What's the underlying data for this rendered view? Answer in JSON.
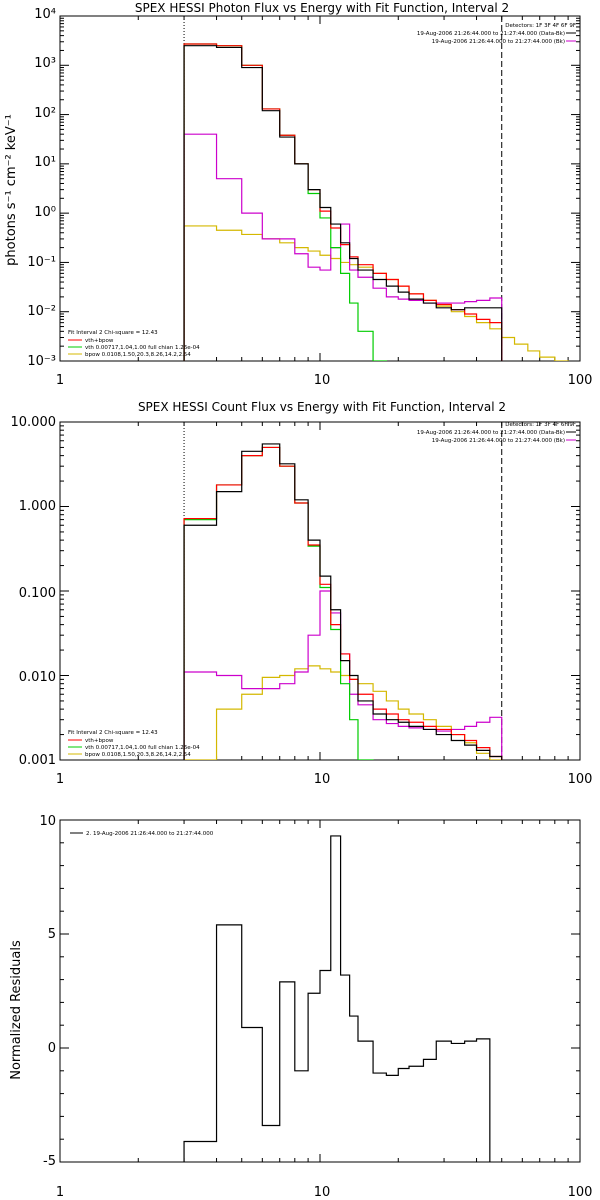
{
  "colors": {
    "data": "#000000",
    "total": "#ff0000",
    "thermal": "#00cc00",
    "nonthermal": "#d4b800",
    "background": "#cc00cc"
  },
  "chart_data": [
    {
      "type": "line",
      "title": "SPEX HESSI Photon Flux vs Energy with Fit Function, Interval 2",
      "xlabel": "",
      "ylabel": "photons s⁻¹ cm⁻² keV⁻¹",
      "xscale": "log",
      "yscale": "log",
      "xlim": [
        1,
        100
      ],
      "ylim": [
        0.001,
        10000
      ],
      "x_ticks": [
        "1",
        "10",
        "100"
      ],
      "y_ticks": [
        "10⁻³",
        "10⁻²",
        "10⁻¹",
        "10⁰",
        "10¹",
        "10²",
        "10³",
        "10⁴"
      ],
      "energy_range_lines": [
        3,
        50
      ],
      "bin_edges": [
        3,
        4,
        5,
        6,
        7,
        8,
        9,
        10,
        11,
        12,
        13,
        14,
        16,
        18,
        20,
        22,
        25,
        28,
        32,
        36,
        40,
        45,
        50,
        56,
        63,
        70,
        80,
        90
      ],
      "legend_top_right": [
        "Detectors: 1F 3F 4F 6F 9F",
        "19-Aug-2006 21:26:44.000 to 21:27:44.000 (Data-Bk)",
        "19-Aug-2006 21:26:44.000 to 21:27:44.000 (Bk)"
      ],
      "legend_bottom_left": [
        "Fit Interval 2   Chi-square = 12.43",
        "vth+bpow",
        "vth 0.00717,1.04,1.00  full chian 1.26e-04",
        "bpow 0.0108,1.50,20.3,8.26,14.2,2.54"
      ],
      "series": [
        {
          "name": "Data-Bk",
          "values": [
            2500,
            2300,
            900,
            120,
            35,
            10,
            3,
            1.3,
            0.6,
            0.25,
            0.12,
            0.07,
            0.045,
            0.033,
            0.025,
            0.018,
            0.015,
            0.012,
            0.011,
            0.012,
            0.012,
            0.012
          ]
        },
        {
          "name": "vth+bpow",
          "values": [
            2700,
            2500,
            1000,
            130,
            38,
            10,
            3,
            1.1,
            0.5,
            0.23,
            0.13,
            0.09,
            0.06,
            0.045,
            0.033,
            0.023,
            0.017,
            0.014,
            0.011,
            0.009,
            0.007,
            0.006
          ]
        },
        {
          "name": "vth",
          "values": [
            2700,
            2500,
            1000,
            130,
            38,
            10,
            2.5,
            0.8,
            0.2,
            0.06,
            0.015,
            0.004,
            0.001
          ]
        },
        {
          "name": "bpow",
          "values": [
            0.55,
            0.45,
            0.37,
            0.3,
            0.25,
            0.2,
            0.17,
            0.14,
            0.12,
            0.1,
            0.09,
            0.08,
            0.06,
            0.045,
            0.033,
            0.023,
            0.017,
            0.013,
            0.01,
            0.008,
            0.006,
            0.0045,
            0.003,
            0.0022,
            0.0016,
            0.0012,
            0.001
          ]
        },
        {
          "name": "Bk",
          "values": [
            40,
            5,
            1,
            0.3,
            0.3,
            0.15,
            0.08,
            0.07,
            0.2,
            0.6,
            0.07,
            0.05,
            0.03,
            0.02,
            0.018,
            0.017,
            0.015,
            0.015,
            0.015,
            0.016,
            0.017,
            0.019
          ]
        }
      ]
    },
    {
      "type": "line",
      "title": "SPEX HESSI Count Flux vs Energy with Fit Function, Interval 2",
      "xlabel": "",
      "ylabel": "",
      "xscale": "log",
      "yscale": "log",
      "xlim": [
        1,
        100
      ],
      "ylim": [
        0.001,
        10
      ],
      "x_ticks": [
        "1",
        "10",
        "100"
      ],
      "y_ticks": [
        "0.001",
        "0.010",
        "0.100",
        "1.000",
        "10.000"
      ],
      "energy_range_lines": [
        3,
        50
      ],
      "bin_edges": [
        3,
        4,
        5,
        6,
        7,
        8,
        9,
        10,
        11,
        12,
        13,
        14,
        16,
        18,
        20,
        22,
        25,
        28,
        32,
        36,
        40,
        45,
        50
      ],
      "legend_top_right": [
        "Detectors: 1F 3F 4F 6F 9F",
        "19-Aug-2006 21:26:44.000 to 21:27:44.000 (Data-Bk)",
        "19-Aug-2006 21:26:44.000 to 21:27:44.000 (Bk)"
      ],
      "legend_bottom_left": [
        "Fit Interval 2   Chi-square = 12.43",
        "vth+bpow",
        "vth 0.00717,1.04,1.00  full chian 1.26e-04",
        "bpow 0.0108,1.50,20.3,8.26,14.2,2.54"
      ],
      "series": [
        {
          "name": "Data-Bk",
          "values": [
            0.6,
            1.5,
            4.5,
            5.5,
            3.2,
            1.2,
            0.4,
            0.15,
            0.06,
            0.015,
            0.01,
            0.005,
            0.0035,
            0.003,
            0.0028,
            0.0025,
            0.0023,
            0.002,
            0.0017,
            0.0015,
            0.0013,
            0.0011
          ]
        },
        {
          "name": "vth+bpow",
          "values": [
            0.72,
            1.8,
            4,
            5,
            3,
            1.1,
            0.35,
            0.12,
            0.04,
            0.018,
            0.009,
            0.006,
            0.004,
            0.0035,
            0.003,
            0.0028,
            0.0025,
            0.0023,
            0.002,
            0.0017,
            0.0014,
            0.0011
          ]
        },
        {
          "name": "vth",
          "values": [
            0.7,
            1.8,
            4,
            5,
            3,
            1.1,
            0.34,
            0.11,
            0.035,
            0.008,
            0.003,
            0.001
          ]
        },
        {
          "name": "bpow",
          "values": [
            0.001,
            0.004,
            0.006,
            0.0095,
            0.01,
            0.012,
            0.013,
            0.012,
            0.011,
            0.01,
            0.009,
            0.008,
            0.0065,
            0.005,
            0.004,
            0.0035,
            0.003,
            0.0025,
            0.002,
            0.0016,
            0.0012,
            0.001
          ]
        },
        {
          "name": "Bk",
          "values": [
            0.011,
            0.01,
            0.007,
            0.007,
            0.008,
            0.011,
            0.03,
            0.1,
            0.055,
            0.018,
            0.006,
            0.0045,
            0.003,
            0.0027,
            0.0025,
            0.0024,
            0.0023,
            0.0022,
            0.0023,
            0.0025,
            0.0028,
            0.0032
          ]
        }
      ]
    },
    {
      "type": "line",
      "title": "",
      "xlabel": "",
      "ylabel": "Normalized Residuals",
      "xscale": "log",
      "yscale": "linear",
      "xlim": [
        1,
        100
      ],
      "ylim": [
        -5,
        10
      ],
      "x_ticks": [
        "1",
        "10",
        "100"
      ],
      "y_ticks": [
        "-5",
        "0",
        "5",
        "10"
      ],
      "bin_edges": [
        3,
        4,
        5,
        6,
        7,
        8,
        9,
        10,
        11,
        12,
        13,
        14,
        16,
        18,
        20,
        22,
        25,
        28,
        32,
        36,
        40,
        45,
        50
      ],
      "legend_top_left": [
        "2. 19-Aug-2006 21:26:44.000 to 21:27:44.000"
      ],
      "series": [
        {
          "name": "2. 19-Aug-2006 21:26:44.000 to 21:27:44.000",
          "values": [
            -4.1,
            5.4,
            0.9,
            -3.4,
            2.9,
            -1.0,
            2.4,
            3.4,
            9.3,
            3.2,
            1.4,
            0.3,
            -1.1,
            -1.2,
            -0.9,
            -0.8,
            -0.5,
            0.3,
            0.2,
            0.3,
            0.4
          ]
        }
      ]
    }
  ]
}
